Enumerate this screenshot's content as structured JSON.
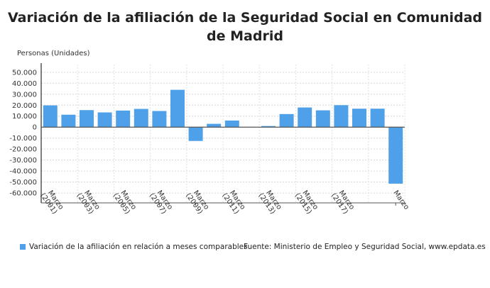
{
  "chart_data": {
    "type": "bar",
    "title": "Variación de la afiliación de la Seguridad Social en Comunidad de Madrid",
    "ylabel": "Personas (Unidades)",
    "xlabel": "",
    "categories": [
      "Marzo (2001)",
      "",
      "Marzo (2003)",
      "",
      "Marzo (2005)",
      "",
      "Marzo (2007)",
      "",
      "Marzo (2009)",
      "",
      "Marzo (2011)",
      "",
      "Marzo (2013)",
      "",
      "Marzo (2015)",
      "",
      "Marzo (2017)",
      "",
      "",
      "Marzo"
    ],
    "series": [
      {
        "name": "Variación de la afiliación en relación a meses comparables",
        "color": "#4ea1e8",
        "values": [
          19800,
          11300,
          15500,
          13400,
          15100,
          16600,
          14700,
          34000,
          -12600,
          3000,
          6000,
          0,
          1000,
          11900,
          17900,
          15300,
          20000,
          16800,
          16800,
          -51500
        ]
      }
    ],
    "yticks": [
      50000,
      40000,
      30000,
      20000,
      10000,
      0,
      -10000,
      -20000,
      -30000,
      -40000,
      -50000,
      -60000
    ],
    "ytick_labels": [
      "50.000",
      "40.000",
      "30.000",
      "20.000",
      "10.000",
      "0",
      "-10.000",
      "-20.000",
      "-30.000",
      "-40.000",
      "-50.000",
      "-60.000"
    ],
    "ylim": [
      -69000,
      57000
    ],
    "grid": true,
    "legend": "bottom-left"
  },
  "source": "Fuente: Ministerio de Empleo y Seguridad Social, www.epdata.es"
}
